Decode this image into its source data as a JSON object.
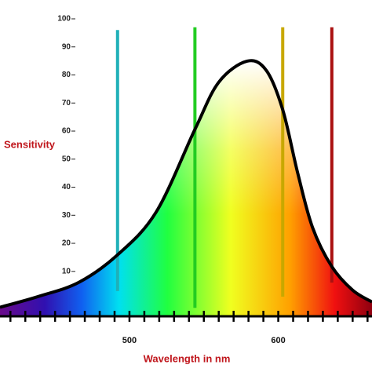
{
  "chart_data": {
    "type": "area",
    "ylabel": "Sensitivity",
    "xlabel": "Wavelength in nm",
    "x": [
      413,
      439,
      466,
      492,
      518,
      544,
      560,
      579,
      592,
      603,
      613,
      623,
      636,
      650,
      663
    ],
    "values": [
      -2.8,
      1.1,
      6.1,
      15.9,
      31.2,
      60.6,
      77.4,
      84.9,
      81.6,
      67.6,
      45.2,
      25.7,
      11.7,
      3.3,
      -0.9
    ],
    "color": "#000000",
    "xlim": [
      413,
      663
    ],
    "ylim": [
      -6,
      100
    ],
    "xticks": [
      500,
      600
    ],
    "xminorticks": [
      420,
      430,
      440,
      450,
      460,
      470,
      480,
      490,
      500,
      510,
      520,
      530,
      540,
      550,
      560,
      570,
      580,
      590,
      600,
      610,
      620,
      630,
      640,
      650,
      660
    ],
    "yticks": [
      10,
      20,
      30,
      40,
      50,
      60,
      70,
      80,
      90,
      100
    ],
    "markers": [
      {
        "x": 492,
        "top": 96,
        "bottom": 3,
        "color": "#20b0b8"
      },
      {
        "x": 544,
        "top": 97,
        "bottom": -3,
        "color": "#22cc22"
      },
      {
        "x": 603,
        "top": 97,
        "bottom": 1,
        "color": "#c8a800"
      },
      {
        "x": 636,
        "top": 97,
        "bottom": 6,
        "color": "#aa1111"
      }
    ]
  }
}
